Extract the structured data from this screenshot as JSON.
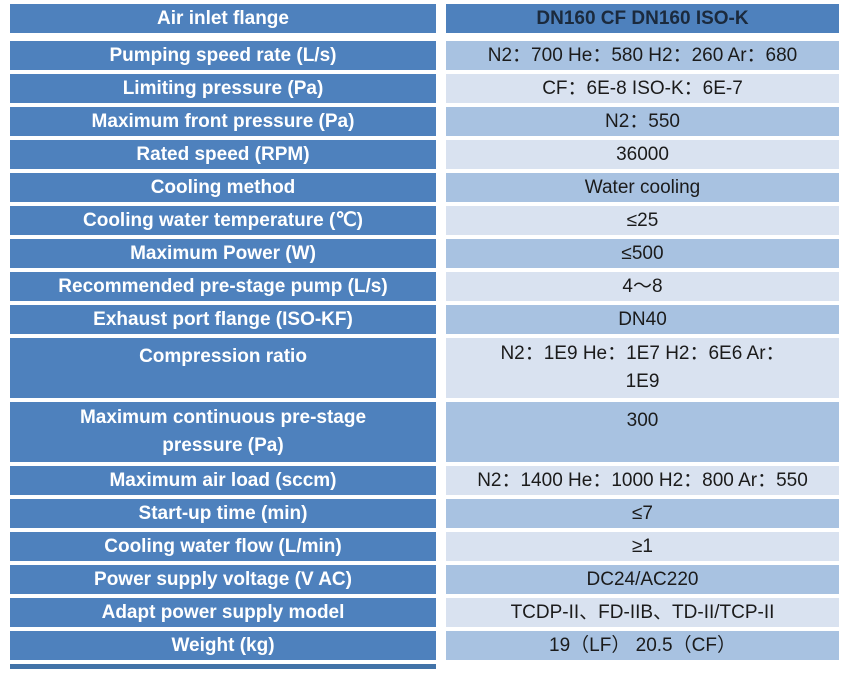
{
  "colors": {
    "header_blue": "#4e81bd",
    "band_medium": "#a8c2e1",
    "band_light": "#d9e2f0",
    "label_text": "#ffffff",
    "value_text": "#1b1b1b",
    "header_value_text": "#1b2a3d",
    "bottom_edge": "#4273a8",
    "page_background": "#ffffff"
  },
  "table": {
    "rows": [
      {
        "label": "Air inlet flange",
        "value": "DN160 CF DN160 ISO-K"
      },
      {
        "label": "Pumping speed rate (L/s)",
        "value": "N2：700 He：580 H2：260 Ar：680"
      },
      {
        "label": "Limiting pressure (Pa)",
        "value": "CF：6E-8 ISO-K：6E-7"
      },
      {
        "label": "Maximum front pressure (Pa)",
        "value": "N2：550"
      },
      {
        "label": "Rated speed (RPM)",
        "value": "36000"
      },
      {
        "label": "Cooling method",
        "value": "Water cooling"
      },
      {
        "label": "Cooling water temperature (℃)",
        "value": "≤25"
      },
      {
        "label": "Maximum Power (W)",
        "value": "≤500"
      },
      {
        "label": "Recommended pre-stage pump (L/s)",
        "value": "4～8"
      },
      {
        "label": "Exhaust port flange (ISO-KF)",
        "value": "DN40"
      },
      {
        "label": "Compression ratio",
        "value": "N2：1E9  He：1E7  H2：6E6  Ar：\n1E9"
      },
      {
        "label": "Maximum continuous pre-stage\npressure (Pa)",
        "value": "300"
      },
      {
        "label": "Maximum air load (sccm)",
        "value": "N2：1400 He：1000 H2：800 Ar：550"
      },
      {
        "label": "Start-up time (min)",
        "value": "≤7"
      },
      {
        "label": "Cooling water flow (L/min)",
        "value": "≥1"
      },
      {
        "label": "Power supply voltage (V AC)",
        "value": "DC24/AC220"
      },
      {
        "label": "Adapt power supply model",
        "value": "TCDP-II、FD-IIB、TD-II/TCP-II"
      },
      {
        "label": "Weight (kg)",
        "value": "19（LF） 20.5（CF）"
      }
    ]
  }
}
